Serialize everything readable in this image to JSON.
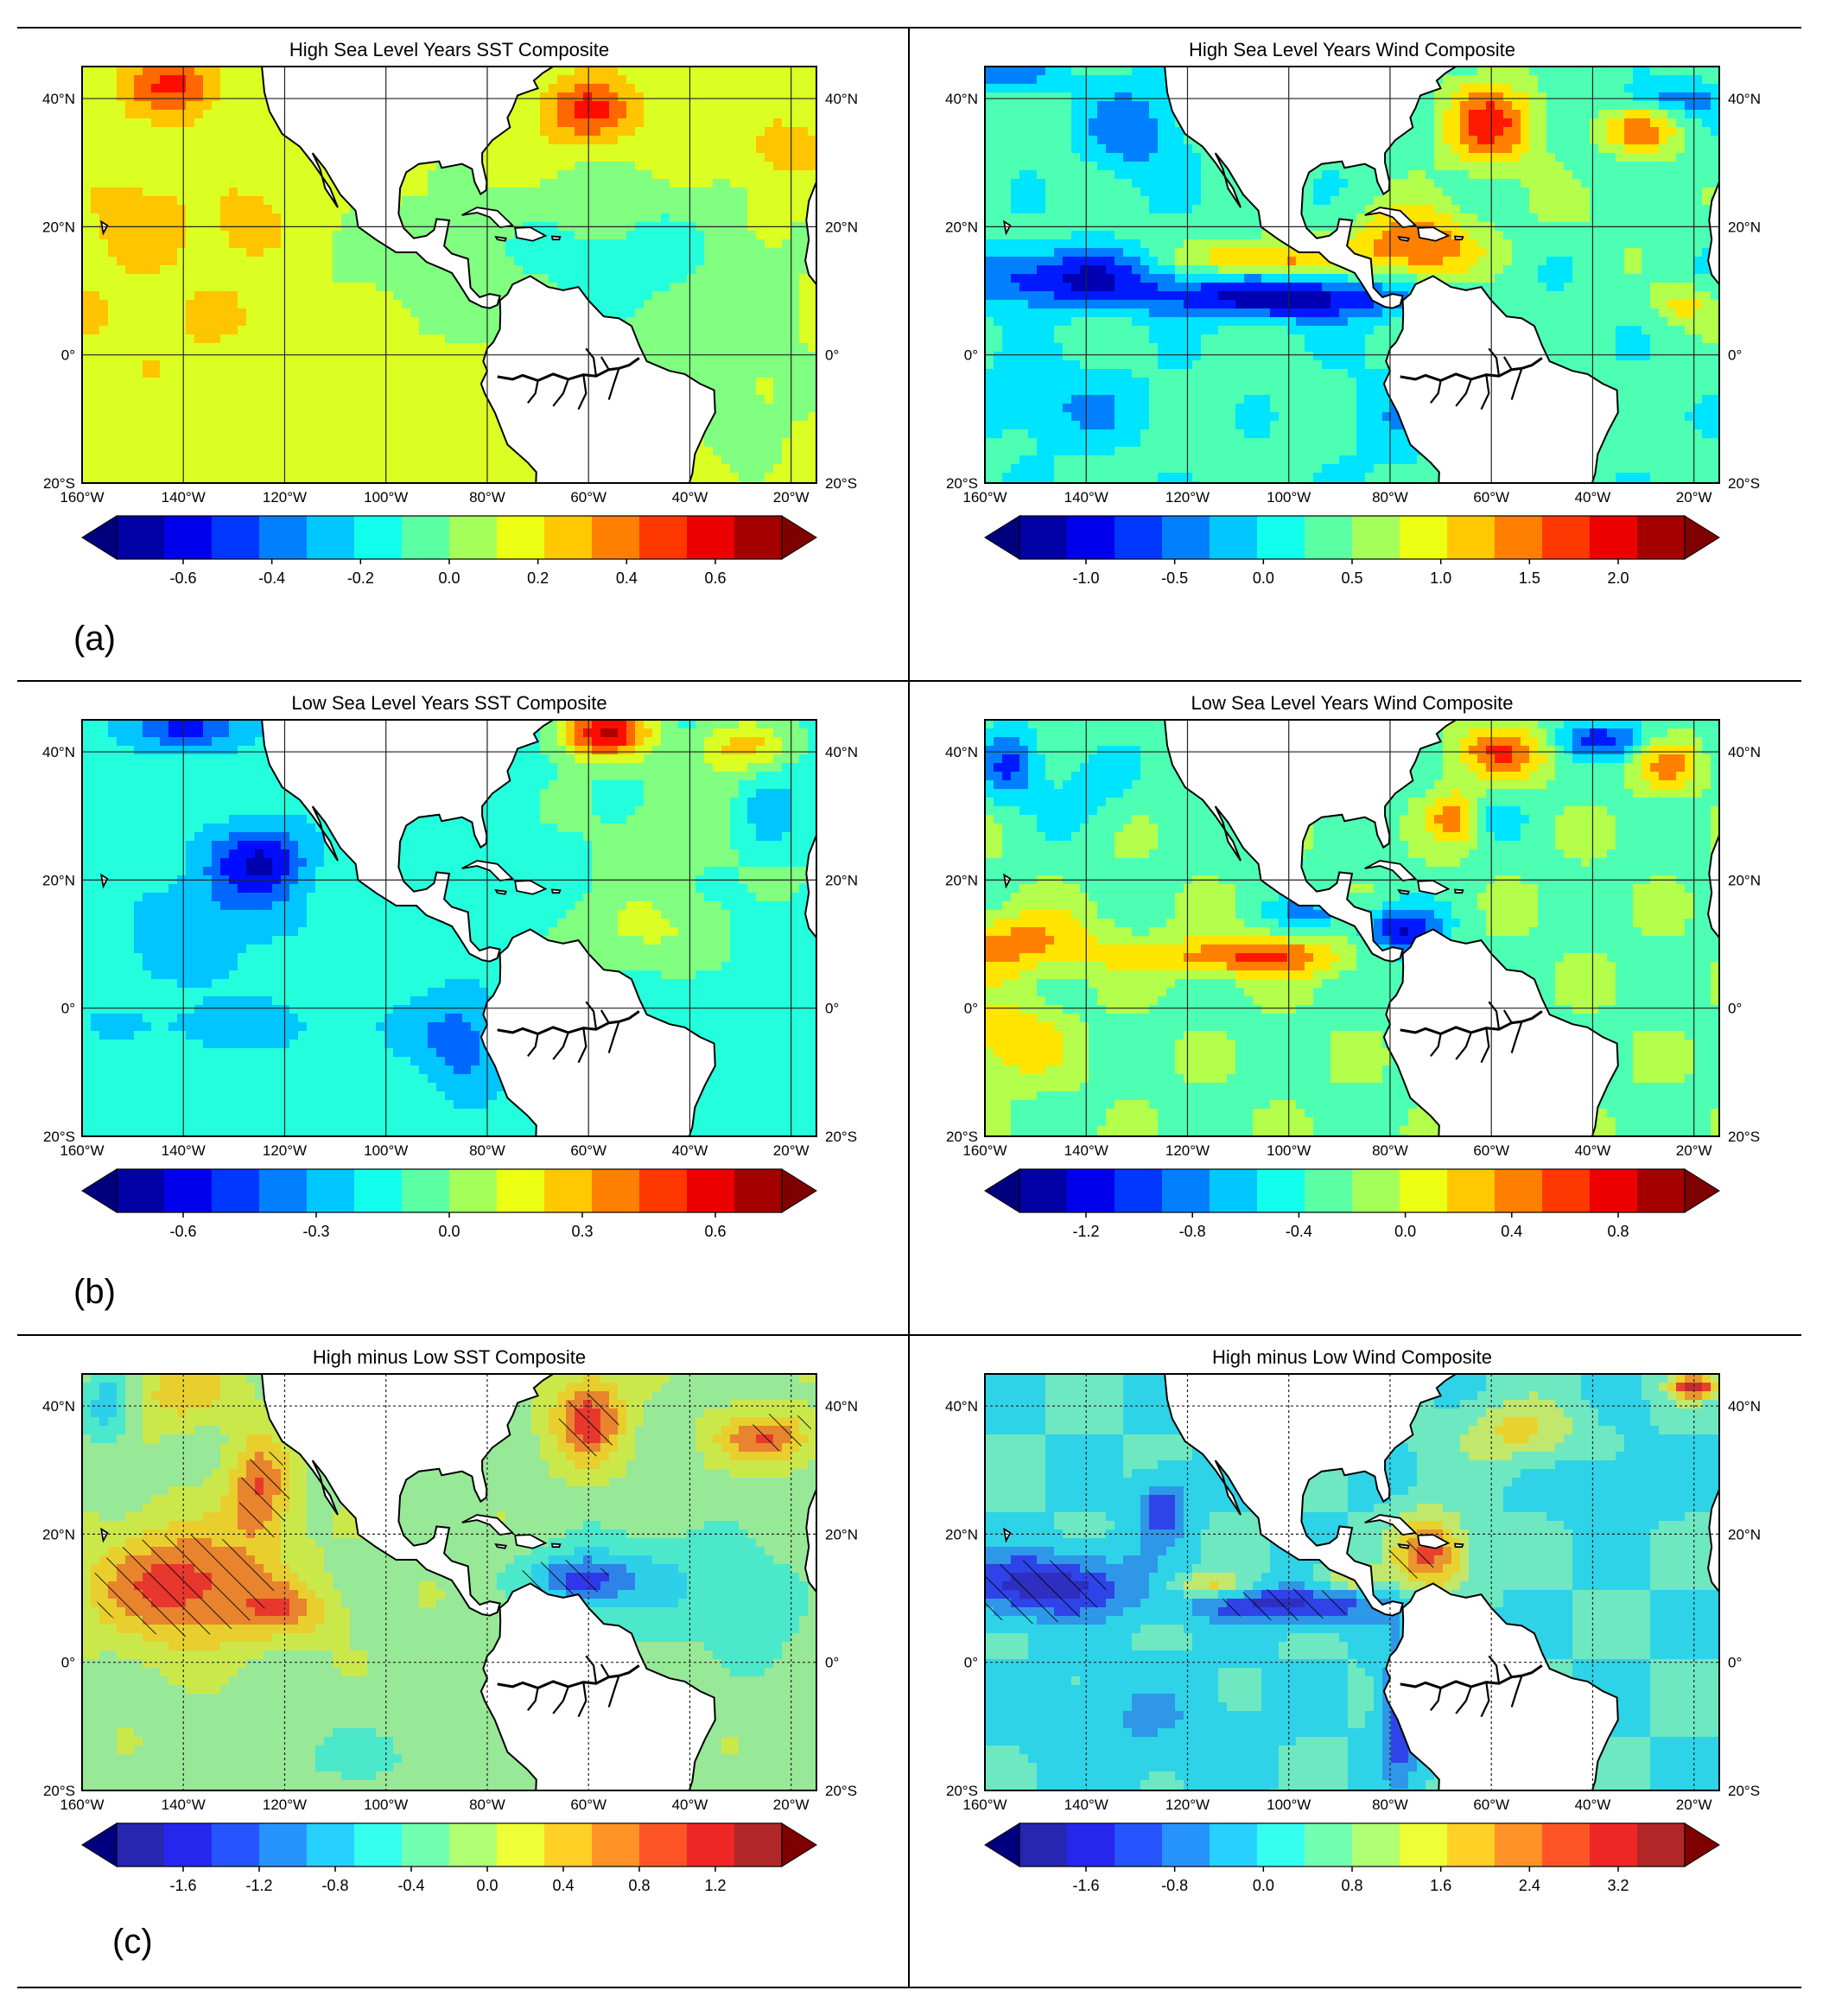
{
  "figure": {
    "rows": [
      {
        "label": "(a)",
        "panels": [
          {
            "title": "High Sea Level Years SST Composite",
            "kind": "sst",
            "cbar_ticks": [
              "-0.6",
              "-0.4",
              "-0.2",
              "0.0",
              "0.2",
              "0.4",
              "0.6"
            ],
            "field": "highSST"
          },
          {
            "title": "High Sea Level Years Wind Composite",
            "kind": "wind",
            "cbar_ticks": [
              "-1.0",
              "-0.5",
              "0.0",
              "0.5",
              "1.0",
              "1.5",
              "2.0"
            ],
            "field": "highWind"
          }
        ]
      },
      {
        "label": "(b)",
        "panels": [
          {
            "title": "Low Sea Level Years SST Composite",
            "kind": "sst",
            "cbar_ticks": [
              "-0.6",
              "-0.3",
              "0.0",
              "0.3",
              "0.6"
            ],
            "field": "lowSST"
          },
          {
            "title": "Low Sea Level Years Wind Composite",
            "kind": "wind",
            "cbar_ticks": [
              "-1.2",
              "-0.8",
              "-0.4",
              "0.0",
              "0.4",
              "0.8"
            ],
            "field": "lowWind"
          }
        ]
      },
      {
        "label": "(c)",
        "panels": [
          {
            "title": "High minus Low SST Composite",
            "kind": "sst",
            "cbar_ticks": [
              "-1.6",
              "-1.2",
              "-0.8",
              "-0.4",
              "0.0",
              "0.4",
              "0.8",
              "1.2"
            ],
            "field": "diffSST",
            "hatched": true
          },
          {
            "title": "High minus Low Wind Composite",
            "kind": "wind",
            "cbar_ticks": [
              "-1.6",
              "-0.8",
              "0.0",
              "0.8",
              "1.6",
              "2.4",
              "3.2"
            ],
            "field": "diffWind",
            "hatched": true
          }
        ]
      }
    ],
    "axes": {
      "lon_labels": [
        "160°W",
        "140°W",
        "120°W",
        "100°W",
        "80°W",
        "60°W",
        "40°W",
        "20°W"
      ],
      "lat_labels": [
        "40°N",
        "20°N",
        "0°",
        "20°S"
      ],
      "lon_values": [
        -160,
        -140,
        -120,
        -100,
        -80,
        -60,
        -40,
        -20
      ],
      "lat_values": [
        40,
        20,
        0,
        -20
      ]
    },
    "map_extent": {
      "lon": [
        -160,
        -15
      ],
      "lat": [
        -20,
        45
      ]
    },
    "colormap": "jet",
    "colors": [
      "#00007f",
      "#0000ff",
      "#0080ff",
      "#00d9ff",
      "#4dffb3",
      "#b3ff4d",
      "#ffe600",
      "#ff8000",
      "#ff1a00",
      "#7f0000"
    ]
  }
}
